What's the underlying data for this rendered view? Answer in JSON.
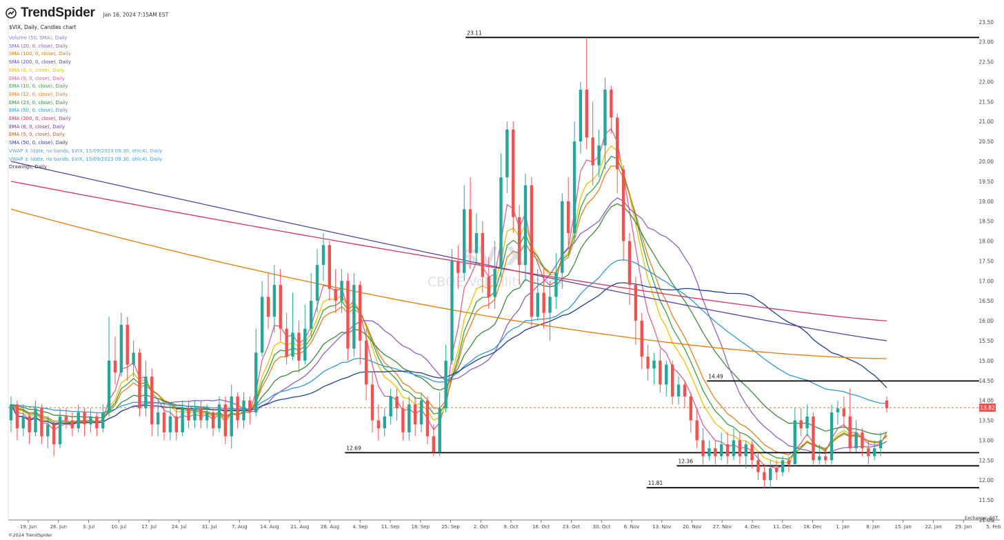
{
  "header": {
    "logo_name": "TrendSpider",
    "timestamp": "Jan 16, 2024 7:15AM EST",
    "chart_title": "$VIX, Daily, Candles chart"
  },
  "legend": [
    {
      "label": "Volume (50, SMA), Daily",
      "color": "#8c7bd0"
    },
    {
      "label": "SMA (20, 0, close), Daily",
      "color": "#8d5fc0"
    },
    {
      "label": "SMA (100, 0, close), Daily",
      "color": "#e07b00"
    },
    {
      "label": "SMA (200, 0, close), Daily",
      "color": "#5b3fa0"
    },
    {
      "label": "EMA (8, 0, close), Daily",
      "color": "#e8c000"
    },
    {
      "label": "EMA (9, 0, close), Daily",
      "color": "#d86090"
    },
    {
      "label": "EMA (10, 0, close), Daily",
      "color": "#3e9c3e"
    },
    {
      "label": "EMA (12, 0, close), Daily",
      "color": "#e08020"
    },
    {
      "label": "EMA (23, 0, close), Daily",
      "color": "#3a8a3a"
    },
    {
      "label": "EMA (50, 0, close), Daily",
      "color": "#2f97d0"
    },
    {
      "label": "EMA (200, 0, close), Daily",
      "color": "#d0345a"
    },
    {
      "label": "EMA (6, 0, close), Daily",
      "color": "#7a2ea0"
    },
    {
      "label": "EMA (5, 0, close), Daily",
      "color": "#b06030"
    },
    {
      "label": "SMA (50, 0, close), Daily",
      "color": "#1f3f8f"
    },
    {
      "label": "VWAP ⚓ (date, no bands, $VIX, 15/09/2023 09:30, ohlc4), Daily",
      "color": "#5aa0d0"
    },
    {
      "label": "VWAP ⚓ (date, no bands, $VIX, 15/09/2023 09:30, ohlc4), Daily",
      "color": "#3aa0d8"
    },
    {
      "label": "Drawings, Daily",
      "color": "#333333"
    }
  ],
  "watermark": {
    "logo": "$VIX",
    "name": "CBOE Volatility Index"
  },
  "footer": {
    "copyright": "©2024 TrendSpider",
    "exchange": "Exchange: EST"
  },
  "colors": {
    "up": "#26a69a",
    "down": "#ef5350",
    "last_price": "#e86f2a"
  },
  "chart_data": {
    "type": "candlestick",
    "title": "$VIX, Daily, Candles chart",
    "ylim": [
      11.0,
      23.6
    ],
    "last_price": "13.82",
    "y_ticks": [
      "23.50",
      "23.00",
      "22.50",
      "22.00",
      "21.50",
      "21.00",
      "20.50",
      "20.00",
      "19.50",
      "19.00",
      "18.50",
      "18.00",
      "17.50",
      "17.00",
      "16.50",
      "16.00",
      "15.50",
      "15.00",
      "14.50",
      "14.00",
      "13.50",
      "13.00",
      "12.50",
      "12.00",
      "11.50",
      "11.00"
    ],
    "x_ticks": [
      "19. Jun",
      "26. Jun",
      "3. Jul",
      "10. Jul",
      "17. Jul",
      "24. Jul",
      "31. Jul",
      "7. Aug",
      "14. Aug",
      "21. Aug",
      "28. Aug",
      "4. Sep",
      "11. Sep",
      "18. Sep",
      "25. Sep",
      "2. Oct",
      "9. Oct",
      "16. Oct",
      "23. Oct",
      "30. Oct",
      "6. Nov",
      "13. Nov",
      "20. Nov",
      "27. Nov",
      "4. Dec",
      "11. Dec",
      "18. Dec",
      "1. Jan",
      "8. Jan",
      "15. Jan",
      "22. Jan",
      "29. Jan",
      "5. Feb"
    ],
    "levels": [
      {
        "label": "23.11",
        "value": 23.11,
        "from": "2. Oct",
        "to": "end"
      },
      {
        "label": "14.49",
        "value": 14.49,
        "from": "27. Nov",
        "to": "end"
      },
      {
        "label": "12.69",
        "value": 12.69,
        "from": "4. Sep",
        "to": "end"
      },
      {
        "label": "12.36",
        "value": 12.36,
        "from": "20. Nov",
        "to": "end"
      },
      {
        "label": "11.81",
        "value": 11.81,
        "from": "13. Nov",
        "to": "end"
      }
    ],
    "candles": [
      [
        13.5,
        13.9,
        14.1,
        13.2
      ],
      [
        13.9,
        13.3,
        14.0,
        13.0
      ],
      [
        13.3,
        13.6,
        13.9,
        13.1
      ],
      [
        13.6,
        13.2,
        13.7,
        12.9
      ],
      [
        13.2,
        13.8,
        14.0,
        13.1
      ],
      [
        13.8,
        13.1,
        13.9,
        12.9
      ],
      [
        13.1,
        13.4,
        13.6,
        12.8
      ],
      [
        13.4,
        12.9,
        13.5,
        12.6
      ],
      [
        12.9,
        13.6,
        13.8,
        12.8
      ],
      [
        13.6,
        13.5,
        13.8,
        13.3
      ],
      [
        13.5,
        13.3,
        13.7,
        13.1
      ],
      [
        13.3,
        13.7,
        13.9,
        13.2
      ],
      [
        13.7,
        13.4,
        13.8,
        13.1
      ],
      [
        13.4,
        13.6,
        13.8,
        13.2
      ],
      [
        13.6,
        13.3,
        13.7,
        13.1
      ],
      [
        13.3,
        13.7,
        13.9,
        13.2
      ],
      [
        13.7,
        15.0,
        16.1,
        13.6
      ],
      [
        15.0,
        14.7,
        15.6,
        14.4
      ],
      [
        14.7,
        15.9,
        16.2,
        14.6
      ],
      [
        15.9,
        14.9,
        16.1,
        14.5
      ],
      [
        14.9,
        15.2,
        15.5,
        14.6
      ],
      [
        15.2,
        13.8,
        15.3,
        13.6
      ],
      [
        13.8,
        14.6,
        15.0,
        13.6
      ],
      [
        14.6,
        13.4,
        14.8,
        13.1
      ],
      [
        13.4,
        13.7,
        14.0,
        13.1
      ],
      [
        13.7,
        13.2,
        13.9,
        13.0
      ],
      [
        13.2,
        13.6,
        13.9,
        13.0
      ],
      [
        13.6,
        13.2,
        13.8,
        13.0
      ],
      [
        13.2,
        13.8,
        14.0,
        13.1
      ],
      [
        13.8,
        13.5,
        14.0,
        13.3
      ],
      [
        13.5,
        13.8,
        14.0,
        13.3
      ],
      [
        13.8,
        13.5,
        14.0,
        13.3
      ],
      [
        13.5,
        13.7,
        13.9,
        13.3
      ],
      [
        13.7,
        13.3,
        13.8,
        13.1
      ],
      [
        13.3,
        13.9,
        14.1,
        13.2
      ],
      [
        13.9,
        13.1,
        14.1,
        12.9
      ],
      [
        13.1,
        14.1,
        14.4,
        12.8
      ],
      [
        14.1,
        13.5,
        14.2,
        13.3
      ],
      [
        13.5,
        14.0,
        14.2,
        13.3
      ],
      [
        14.0,
        13.7,
        14.1,
        13.4
      ],
      [
        13.7,
        15.2,
        15.8,
        13.6
      ],
      [
        15.2,
        16.6,
        17.0,
        15.1
      ],
      [
        16.6,
        16.1,
        17.2,
        15.8
      ],
      [
        16.1,
        16.9,
        17.4,
        15.7
      ],
      [
        16.9,
        15.8,
        17.3,
        15.5
      ],
      [
        15.8,
        15.1,
        16.2,
        14.9
      ],
      [
        15.1,
        15.7,
        16.7,
        15.0
      ],
      [
        15.7,
        15.0,
        16.0,
        14.7
      ],
      [
        15.0,
        15.8,
        16.4,
        14.9
      ],
      [
        15.8,
        16.5,
        17.2,
        15.6
      ],
      [
        16.5,
        17.4,
        17.8,
        16.2
      ],
      [
        17.4,
        17.9,
        18.2,
        17.0
      ],
      [
        17.9,
        16.8,
        18.0,
        16.5
      ],
      [
        16.8,
        16.5,
        17.3,
        16.2
      ],
      [
        16.5,
        17.0,
        17.3,
        16.2
      ],
      [
        17.0,
        15.3,
        17.2,
        15.0
      ],
      [
        15.3,
        16.9,
        17.2,
        15.1
      ],
      [
        16.9,
        15.5,
        17.0,
        14.9
      ],
      [
        15.5,
        14.4,
        15.8,
        14.0
      ],
      [
        14.4,
        13.5,
        14.7,
        13.2
      ],
      [
        13.5,
        13.3,
        13.9,
        13.0
      ],
      [
        13.3,
        13.6,
        13.8,
        13.1
      ],
      [
        13.6,
        14.1,
        14.3,
        13.4
      ],
      [
        14.1,
        13.8,
        14.3,
        13.5
      ],
      [
        13.8,
        13.2,
        14.0,
        13.0
      ],
      [
        13.2,
        13.9,
        14.1,
        13.0
      ],
      [
        13.9,
        13.4,
        14.1,
        13.1
      ],
      [
        13.4,
        14.0,
        14.2,
        13.2
      ],
      [
        14.0,
        13.1,
        14.1,
        12.9
      ],
      [
        13.1,
        12.7,
        13.4,
        12.6
      ],
      [
        12.7,
        13.8,
        14.2,
        12.6
      ],
      [
        13.8,
        15.0,
        15.4,
        13.7
      ],
      [
        15.0,
        17.5,
        17.8,
        14.9
      ],
      [
        17.5,
        17.2,
        17.9,
        16.8
      ],
      [
        17.2,
        18.8,
        19.4,
        17.0
      ],
      [
        18.8,
        17.7,
        19.6,
        17.3
      ],
      [
        17.7,
        18.2,
        18.7,
        17.4
      ],
      [
        18.2,
        17.1,
        18.5,
        16.7
      ],
      [
        17.1,
        16.6,
        17.6,
        16.3
      ],
      [
        16.6,
        17.3,
        18.0,
        16.3
      ],
      [
        17.3,
        19.6,
        20.2,
        17.1
      ],
      [
        19.6,
        20.8,
        21.0,
        19.2
      ],
      [
        20.8,
        18.6,
        21.0,
        18.2
      ],
      [
        18.6,
        17.4,
        18.9,
        16.9
      ],
      [
        17.4,
        19.4,
        19.7,
        17.0
      ],
      [
        19.4,
        16.1,
        19.6,
        15.8
      ],
      [
        16.1,
        16.7,
        17.3,
        16.0
      ],
      [
        16.7,
        16.2,
        17.3,
        15.8
      ],
      [
        16.2,
        16.6,
        17.0,
        15.5
      ],
      [
        16.6,
        17.2,
        17.7,
        16.3
      ],
      [
        17.2,
        19.0,
        19.2,
        16.8
      ],
      [
        19.0,
        18.2,
        19.6,
        17.9
      ],
      [
        18.2,
        20.5,
        21.0,
        18.0
      ],
      [
        20.5,
        21.8,
        22.0,
        20.2
      ],
      [
        21.8,
        20.6,
        23.1,
        20.3
      ],
      [
        20.6,
        19.9,
        21.5,
        19.4
      ],
      [
        19.9,
        20.4,
        20.8,
        19.6
      ],
      [
        20.4,
        21.8,
        22.1,
        19.8
      ],
      [
        21.8,
        21.1,
        21.9,
        20.7
      ],
      [
        21.1,
        19.8,
        21.2,
        19.2
      ],
      [
        19.8,
        18.0,
        19.9,
        17.5
      ],
      [
        18.0,
        16.9,
        18.2,
        16.4
      ],
      [
        16.9,
        16.0,
        17.1,
        15.4
      ],
      [
        16.0,
        15.1,
        16.2,
        14.8
      ],
      [
        15.1,
        14.8,
        15.4,
        14.5
      ],
      [
        14.8,
        15.0,
        15.2,
        14.4
      ],
      [
        15.0,
        14.4,
        15.3,
        14.2
      ],
      [
        14.4,
        14.9,
        15.0,
        14.1
      ],
      [
        14.9,
        14.1,
        15.0,
        13.9
      ],
      [
        14.1,
        14.4,
        14.6,
        13.9
      ],
      [
        14.4,
        14.1,
        14.5,
        13.8
      ],
      [
        14.1,
        13.5,
        14.2,
        13.2
      ],
      [
        13.5,
        13.0,
        13.8,
        12.8
      ],
      [
        13.0,
        12.6,
        13.3,
        12.4
      ],
      [
        12.6,
        12.8,
        13.0,
        12.5
      ],
      [
        12.8,
        12.6,
        13.0,
        12.4
      ],
      [
        12.6,
        12.9,
        13.2,
        12.5
      ],
      [
        12.9,
        12.6,
        13.2,
        12.4
      ],
      [
        12.6,
        13.0,
        13.3,
        12.5
      ],
      [
        13.0,
        12.6,
        13.2,
        12.4
      ],
      [
        12.6,
        12.9,
        13.0,
        12.3
      ],
      [
        12.9,
        12.5,
        13.0,
        12.3
      ],
      [
        12.5,
        12.2,
        12.7,
        12.0
      ],
      [
        12.2,
        12.0,
        12.4,
        11.8
      ],
      [
        12.0,
        12.3,
        12.5,
        11.8
      ],
      [
        12.3,
        12.2,
        12.5,
        12.0
      ],
      [
        12.2,
        12.5,
        12.6,
        12.1
      ],
      [
        12.5,
        12.4,
        12.6,
        12.2
      ],
      [
        12.4,
        13.5,
        13.8,
        12.4
      ],
      [
        13.5,
        13.3,
        13.8,
        13.1
      ],
      [
        13.3,
        13.6,
        13.9,
        13.1
      ],
      [
        13.6,
        12.5,
        13.7,
        12.4
      ],
      [
        12.5,
        12.6,
        12.9,
        12.4
      ],
      [
        12.6,
        12.5,
        12.8,
        12.4
      ],
      [
        12.5,
        13.7,
        13.9,
        12.4
      ],
      [
        13.7,
        13.8,
        14.0,
        13.4
      ],
      [
        13.8,
        13.6,
        14.1,
        13.3
      ],
      [
        13.6,
        12.8,
        14.3,
        12.7
      ],
      [
        12.8,
        13.2,
        13.5,
        12.7
      ],
      [
        13.2,
        12.8,
        13.3,
        12.6
      ],
      [
        12.8,
        12.6,
        13.0,
        12.4
      ],
      [
        12.6,
        12.8,
        13.0,
        12.5
      ],
      [
        12.8,
        13.0,
        13.2,
        12.6
      ],
      [
        14.0,
        13.8,
        14.1,
        13.7
      ]
    ]
  }
}
